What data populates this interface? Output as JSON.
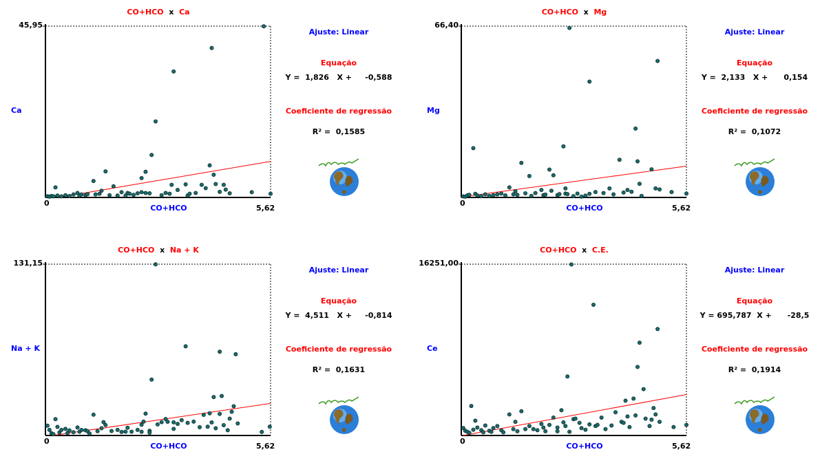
{
  "side_labels": {
    "fit": "Ajuste: Linear",
    "equation": "Equação",
    "coef": "Coeficiente de regressão"
  },
  "chart_data": [
    {
      "type": "scatter",
      "title_x": "CO+HCO",
      "title_sep": "x",
      "title_y": "Ca",
      "xlabel": "CO+HCO",
      "ylabel": "Ca",
      "xlim": [
        0,
        5.62
      ],
      "ylim": [
        0,
        45.95
      ],
      "x_max_label": "5,62",
      "y_max_label": "45,95",
      "y_min_label": "0",
      "equation": "Y =  1,826   X +     -0,588",
      "r2": "R² =  0,1585",
      "fit": {
        "slope": 1.826,
        "intercept": -0.588
      },
      "points": [
        [
          0.05,
          0.3
        ],
        [
          0.1,
          0.2
        ],
        [
          0.15,
          0.4
        ],
        [
          0.2,
          0.3
        ],
        [
          0.25,
          2.7
        ],
        [
          0.3,
          0.5
        ],
        [
          0.4,
          0.3
        ],
        [
          0.5,
          0.6
        ],
        [
          0.6,
          0.4
        ],
        [
          0.7,
          0.8
        ],
        [
          0.8,
          1.2
        ],
        [
          0.85,
          0.5
        ],
        [
          0.9,
          0.8
        ],
        [
          1.0,
          0.6
        ],
        [
          1.05,
          0.9
        ],
        [
          1.2,
          4.4
        ],
        [
          1.25,
          0.8
        ],
        [
          1.35,
          1.0
        ],
        [
          1.4,
          1.8
        ],
        [
          1.5,
          7.0
        ],
        [
          1.6,
          0.6
        ],
        [
          1.7,
          3.0
        ],
        [
          1.8,
          0.5
        ],
        [
          1.9,
          1.4
        ],
        [
          2.0,
          0.5
        ],
        [
          2.05,
          1.2
        ],
        [
          2.1,
          1.0
        ],
        [
          2.2,
          0.7
        ],
        [
          2.3,
          1.1
        ],
        [
          2.4,
          1.4
        ],
        [
          2.4,
          5.2
        ],
        [
          2.5,
          1.2
        ],
        [
          2.5,
          6.9
        ],
        [
          2.6,
          1.1
        ],
        [
          2.65,
          11.4
        ],
        [
          2.75,
          20.4
        ],
        [
          2.9,
          0.6
        ],
        [
          3.0,
          1.2
        ],
        [
          3.1,
          1.0
        ],
        [
          3.15,
          3.4
        ],
        [
          3.2,
          33.8
        ],
        [
          3.3,
          2.0
        ],
        [
          3.5,
          3.5
        ],
        [
          3.55,
          0.5
        ],
        [
          3.6,
          1.0
        ],
        [
          3.75,
          1.2
        ],
        [
          3.9,
          3.4
        ],
        [
          4.0,
          2.5
        ],
        [
          4.1,
          8.6
        ],
        [
          4.15,
          40.1
        ],
        [
          4.2,
          6.1
        ],
        [
          4.25,
          3.6
        ],
        [
          4.35,
          1.5
        ],
        [
          4.45,
          3.4
        ],
        [
          4.5,
          2.1
        ],
        [
          4.6,
          1.1
        ],
        [
          5.15,
          1.4
        ],
        [
          5.45,
          45.9
        ],
        [
          5.62,
          1.0
        ]
      ]
    },
    {
      "type": "scatter",
      "title_x": "CO+HCO",
      "title_sep": "x",
      "title_y": "Mg",
      "xlabel": "CO+HCO",
      "ylabel": "Mg",
      "xlim": [
        0,
        5.62
      ],
      "ylim": [
        0,
        66.4
      ],
      "x_max_label": "5,62",
      "y_max_label": "66,40",
      "y_min_label": "0",
      "equation": "Y =  2,133   X +      0,154",
      "r2": "R² =  0,1072",
      "fit": {
        "slope": 2.133,
        "intercept": 0.154
      },
      "points": [
        [
          0.05,
          0.4
        ],
        [
          0.1,
          0.3
        ],
        [
          0.15,
          0.8
        ],
        [
          0.2,
          1.0
        ],
        [
          0.3,
          19.1
        ],
        [
          0.35,
          1.4
        ],
        [
          0.4,
          0.8
        ],
        [
          0.5,
          0.5
        ],
        [
          0.6,
          1.2
        ],
        [
          0.7,
          0.6
        ],
        [
          0.8,
          0.9
        ],
        [
          0.9,
          1.2
        ],
        [
          1.0,
          1.5
        ],
        [
          1.1,
          0.8
        ],
        [
          1.2,
          3.9
        ],
        [
          1.3,
          1.2
        ],
        [
          1.35,
          2.4
        ],
        [
          1.4,
          1.0
        ],
        [
          1.5,
          13.4
        ],
        [
          1.6,
          1.6
        ],
        [
          1.7,
          8.3
        ],
        [
          1.75,
          0.6
        ],
        [
          1.85,
          1.7
        ],
        [
          2.0,
          2.9
        ],
        [
          2.05,
          0.9
        ],
        [
          2.1,
          1.1
        ],
        [
          2.2,
          10.8
        ],
        [
          2.25,
          2.6
        ],
        [
          2.3,
          8.6
        ],
        [
          2.4,
          0.9
        ],
        [
          2.45,
          1.3
        ],
        [
          2.55,
          19.8
        ],
        [
          2.6,
          3.5
        ],
        [
          2.6,
          1.5
        ],
        [
          2.65,
          1.3
        ],
        [
          2.7,
          65.7
        ],
        [
          2.8,
          0.5
        ],
        [
          2.9,
          1.5
        ],
        [
          3.0,
          0.3
        ],
        [
          3.1,
          0.7
        ],
        [
          3.2,
          1.4
        ],
        [
          3.2,
          44.9
        ],
        [
          3.35,
          2.1
        ],
        [
          3.55,
          1.7
        ],
        [
          3.7,
          3.5
        ],
        [
          3.8,
          1.2
        ],
        [
          3.95,
          14.6
        ],
        [
          4.05,
          1.9
        ],
        [
          4.15,
          2.9
        ],
        [
          4.25,
          2.2
        ],
        [
          4.35,
          26.7
        ],
        [
          4.4,
          14.0
        ],
        [
          4.45,
          5.3
        ],
        [
          4.5,
          0.6
        ],
        [
          4.75,
          10.9
        ],
        [
          4.85,
          3.5
        ],
        [
          4.9,
          52.9
        ],
        [
          4.95,
          3.1
        ],
        [
          5.25,
          2.1
        ],
        [
          5.62,
          1.5
        ]
      ]
    },
    {
      "type": "scatter",
      "title_x": "CO+HCO",
      "title_sep": "x",
      "title_y": "Na + K",
      "xlabel": "CO+HCO",
      "ylabel": "Na + K",
      "xlim": [
        0,
        5.62
      ],
      "ylim": [
        0,
        131.15
      ],
      "x_max_label": "5,62",
      "y_max_label": "131,15",
      "y_min_label": "0",
      "equation": "Y =  4,511   X +     -0,814",
      "r2": "R² =  0,1631",
      "fit": {
        "slope": 4.511,
        "intercept": -0.814
      },
      "points": [
        [
          0.05,
          7.5
        ],
        [
          0.1,
          4.3
        ],
        [
          0.15,
          1.7
        ],
        [
          0.2,
          1.0
        ],
        [
          0.25,
          12.5
        ],
        [
          0.3,
          6.6
        ],
        [
          0.35,
          2.4
        ],
        [
          0.4,
          4.3
        ],
        [
          0.5,
          5.1
        ],
        [
          0.55,
          1.9
        ],
        [
          0.6,
          3.9
        ],
        [
          0.7,
          2.5
        ],
        [
          0.8,
          6.1
        ],
        [
          0.85,
          2.9
        ],
        [
          0.9,
          4.2
        ],
        [
          1.0,
          4.0
        ],
        [
          1.05,
          3.3
        ],
        [
          1.1,
          1.5
        ],
        [
          1.2,
          15.9
        ],
        [
          1.3,
          3.3
        ],
        [
          1.4,
          5.5
        ],
        [
          1.45,
          10.2
        ],
        [
          1.5,
          8.0
        ],
        [
          1.65,
          3.4
        ],
        [
          1.8,
          4.3
        ],
        [
          1.9,
          2.7
        ],
        [
          2.0,
          2.9
        ],
        [
          2.05,
          5.9
        ],
        [
          2.15,
          2.9
        ],
        [
          2.3,
          4.3
        ],
        [
          2.4,
          2.8
        ],
        [
          2.4,
          8.2
        ],
        [
          2.45,
          10.6
        ],
        [
          2.5,
          16.7
        ],
        [
          2.6,
          3.6
        ],
        [
          2.6,
          2.1
        ],
        [
          2.65,
          42.8
        ],
        [
          2.75,
          131.0
        ],
        [
          2.8,
          8.5
        ],
        [
          2.9,
          10.2
        ],
        [
          3.0,
          12.6
        ],
        [
          3.05,
          10.5
        ],
        [
          3.2,
          5.1
        ],
        [
          3.2,
          10.1
        ],
        [
          3.3,
          8.9
        ],
        [
          3.4,
          11.7
        ],
        [
          3.5,
          68.3
        ],
        [
          3.55,
          9.7
        ],
        [
          3.7,
          10.6
        ],
        [
          3.85,
          6.3
        ],
        [
          3.95,
          15.8
        ],
        [
          4.05,
          6.7
        ],
        [
          4.1,
          17.0
        ],
        [
          4.15,
          10.0
        ],
        [
          4.2,
          29.4
        ],
        [
          4.25,
          5.5
        ],
        [
          4.35,
          16.5
        ],
        [
          4.35,
          64.1
        ],
        [
          4.4,
          30.2
        ],
        [
          4.45,
          7.9
        ],
        [
          4.55,
          4.0
        ],
        [
          4.6,
          12.9
        ],
        [
          4.65,
          18.2
        ],
        [
          4.7,
          22.4
        ],
        [
          4.75,
          62.2
        ],
        [
          4.8,
          9.2
        ],
        [
          5.4,
          2.7
        ],
        [
          5.6,
          6.7
        ]
      ]
    },
    {
      "type": "scatter",
      "title_x": "CO+HCO",
      "title_sep": "x",
      "title_y": "C.E.",
      "xlabel": "CO+HCO",
      "ylabel": "Ce",
      "xlim": [
        0,
        5.62
      ],
      "ylim": [
        0,
        16251.0
      ],
      "x_max_label": "5,62",
      "y_max_label": "16251,00",
      "y_min_label": "0",
      "equation": "Y = 695,787  X +      -28,5",
      "r2": "R² =  0,1914",
      "fit": {
        "slope": 695.787,
        "intercept": -28.5
      },
      "points": [
        [
          0.05,
          700
        ],
        [
          0.1,
          450
        ],
        [
          0.15,
          350
        ],
        [
          0.2,
          250
        ],
        [
          0.25,
          2800
        ],
        [
          0.3,
          550
        ],
        [
          0.35,
          1400
        ],
        [
          0.4,
          750
        ],
        [
          0.5,
          500
        ],
        [
          0.55,
          300
        ],
        [
          0.6,
          950
        ],
        [
          0.7,
          450
        ],
        [
          0.75,
          350
        ],
        [
          0.8,
          700
        ],
        [
          0.9,
          900
        ],
        [
          1.0,
          500
        ],
        [
          1.05,
          300
        ],
        [
          1.2,
          2000
        ],
        [
          1.3,
          600
        ],
        [
          1.35,
          1300
        ],
        [
          1.4,
          400
        ],
        [
          1.5,
          2300
        ],
        [
          1.6,
          600
        ],
        [
          1.7,
          900
        ],
        [
          1.8,
          600
        ],
        [
          1.9,
          500
        ],
        [
          2.0,
          1100
        ],
        [
          2.05,
          750
        ],
        [
          2.1,
          400
        ],
        [
          2.2,
          1000
        ],
        [
          2.3,
          1700
        ],
        [
          2.4,
          750
        ],
        [
          2.4,
          400
        ],
        [
          2.5,
          2400
        ],
        [
          2.55,
          1250
        ],
        [
          2.6,
          900
        ],
        [
          2.65,
          5600
        ],
        [
          2.7,
          350
        ],
        [
          2.75,
          16230
        ],
        [
          2.8,
          1550
        ],
        [
          2.85,
          1600
        ],
        [
          2.95,
          1200
        ],
        [
          3.0,
          700
        ],
        [
          3.1,
          550
        ],
        [
          3.2,
          1050
        ],
        [
          3.3,
          12400
        ],
        [
          3.35,
          900
        ],
        [
          3.4,
          1000
        ],
        [
          3.5,
          1700
        ],
        [
          3.6,
          600
        ],
        [
          3.75,
          950
        ],
        [
          3.85,
          2200
        ],
        [
          4.0,
          1300
        ],
        [
          4.05,
          1200
        ],
        [
          4.1,
          3300
        ],
        [
          4.15,
          1800
        ],
        [
          4.2,
          800
        ],
        [
          4.3,
          3500
        ],
        [
          4.35,
          1900
        ],
        [
          4.4,
          6500
        ],
        [
          4.45,
          8800
        ],
        [
          4.55,
          4400
        ],
        [
          4.6,
          1600
        ],
        [
          4.7,
          900
        ],
        [
          4.75,
          1500
        ],
        [
          4.8,
          2600
        ],
        [
          4.85,
          2000
        ],
        [
          4.9,
          10100
        ],
        [
          4.95,
          1300
        ],
        [
          5.3,
          800
        ],
        [
          5.62,
          1000
        ]
      ]
    }
  ]
}
